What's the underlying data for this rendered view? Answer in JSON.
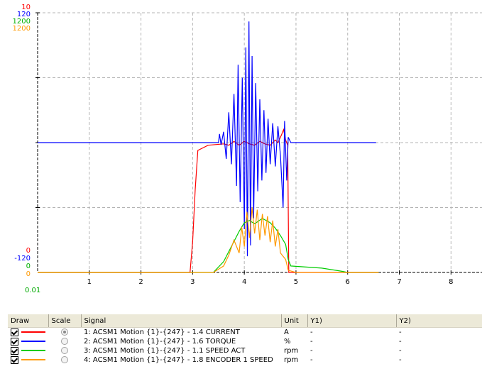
{
  "chart_data": {
    "type": "line",
    "title": "",
    "xlabel": "",
    "ylabel": "",
    "xlim": [
      0,
      8.6
    ],
    "x_tick_labels": [
      "1",
      "2",
      "3",
      "4",
      "5",
      "6",
      "7",
      "8"
    ],
    "x_origin_label": "0.01",
    "y_top_labels": [
      {
        "text": "10",
        "color": "#ff0000"
      },
      {
        "text": "120",
        "color": "#0000ff"
      },
      {
        "text": "1200",
        "color": "#00b000"
      },
      {
        "text": "1200",
        "color": "#ff9900"
      }
    ],
    "y_bottom_labels": [
      {
        "text": "0",
        "color": "#ff0000"
      },
      {
        "text": "-120",
        "color": "#0000ff"
      },
      {
        "text": "0",
        "color": "#00b000"
      },
      {
        "text": "0",
        "color": "#ff9900"
      }
    ],
    "grid": true,
    "series": [
      {
        "key": "current",
        "color": "#ff0000",
        "ylim": [
          0,
          10
        ],
        "points": [
          [
            0,
            0
          ],
          [
            2.95,
            0
          ],
          [
            3.0,
            1.2
          ],
          [
            3.05,
            3.2
          ],
          [
            3.1,
            4.7
          ],
          [
            3.3,
            4.9
          ],
          [
            3.6,
            4.95
          ],
          [
            3.7,
            4.9
          ],
          [
            3.8,
            5.05
          ],
          [
            3.9,
            4.9
          ],
          [
            4.0,
            5.05
          ],
          [
            4.1,
            4.95
          ],
          [
            4.2,
            4.9
          ],
          [
            4.3,
            5.05
          ],
          [
            4.4,
            4.95
          ],
          [
            4.5,
            4.9
          ],
          [
            4.6,
            5.1
          ],
          [
            4.65,
            5.0
          ],
          [
            4.72,
            5.3
          ],
          [
            4.76,
            5.5
          ],
          [
            4.8,
            5.1
          ],
          [
            4.84,
            4.9
          ],
          [
            4.86,
            0
          ],
          [
            6.6,
            0
          ]
        ]
      },
      {
        "key": "torque",
        "color": "#0000ff",
        "ylim": [
          -120,
          120
        ],
        "points": [
          [
            0,
            0
          ],
          [
            3.5,
            0
          ],
          [
            3.52,
            8
          ],
          [
            3.55,
            -2
          ],
          [
            3.6,
            10
          ],
          [
            3.65,
            -15
          ],
          [
            3.7,
            28
          ],
          [
            3.75,
            -20
          ],
          [
            3.8,
            45
          ],
          [
            3.85,
            -40
          ],
          [
            3.88,
            72
          ],
          [
            3.92,
            -55
          ],
          [
            3.96,
            60
          ],
          [
            4.0,
            -80
          ],
          [
            4.03,
            88
          ],
          [
            4.06,
            -105
          ],
          [
            4.09,
            112
          ],
          [
            4.12,
            -95
          ],
          [
            4.15,
            80
          ],
          [
            4.18,
            -70
          ],
          [
            4.22,
            55
          ],
          [
            4.26,
            -45
          ],
          [
            4.3,
            40
          ],
          [
            4.34,
            -35
          ],
          [
            4.38,
            30
          ],
          [
            4.42,
            -28
          ],
          [
            4.46,
            22
          ],
          [
            4.5,
            -20
          ],
          [
            4.55,
            18
          ],
          [
            4.6,
            -22
          ],
          [
            4.65,
            15
          ],
          [
            4.7,
            -12
          ],
          [
            4.75,
            -60
          ],
          [
            4.78,
            20
          ],
          [
            4.82,
            -35
          ],
          [
            4.85,
            5
          ],
          [
            4.9,
            0
          ],
          [
            6.55,
            0
          ]
        ]
      },
      {
        "key": "speed_act",
        "color": "#00cc00",
        "ylim": [
          0,
          1200
        ],
        "points": [
          [
            0,
            0
          ],
          [
            3.4,
            0
          ],
          [
            3.6,
            50
          ],
          [
            3.75,
            120
          ],
          [
            3.9,
            190
          ],
          [
            4.0,
            230
          ],
          [
            4.1,
            240
          ],
          [
            4.2,
            225
          ],
          [
            4.35,
            250
          ],
          [
            4.5,
            230
          ],
          [
            4.6,
            205
          ],
          [
            4.7,
            170
          ],
          [
            4.8,
            130
          ],
          [
            4.85,
            60
          ],
          [
            4.9,
            30
          ],
          [
            5.5,
            20
          ],
          [
            5.9,
            5
          ],
          [
            6.0,
            0
          ],
          [
            6.6,
            0
          ]
        ]
      },
      {
        "key": "encoder1_speed",
        "color": "#ff9900",
        "ylim": [
          0,
          1200
        ],
        "points": [
          [
            0,
            0
          ],
          [
            3.4,
            0
          ],
          [
            3.6,
            30
          ],
          [
            3.7,
            80
          ],
          [
            3.8,
            150
          ],
          [
            3.9,
            90
          ],
          [
            3.95,
            210
          ],
          [
            4.0,
            120
          ],
          [
            4.05,
            280
          ],
          [
            4.1,
            160
          ],
          [
            4.15,
            300
          ],
          [
            4.2,
            180
          ],
          [
            4.25,
            290
          ],
          [
            4.3,
            150
          ],
          [
            4.35,
            270
          ],
          [
            4.4,
            170
          ],
          [
            4.45,
            260
          ],
          [
            4.5,
            140
          ],
          [
            4.55,
            240
          ],
          [
            4.6,
            120
          ],
          [
            4.65,
            200
          ],
          [
            4.7,
            90
          ],
          [
            4.8,
            60
          ],
          [
            4.85,
            10
          ],
          [
            5.0,
            0
          ],
          [
            6.6,
            0
          ]
        ]
      }
    ]
  },
  "legend": {
    "headers": {
      "draw": "Draw",
      "scale": "Scale",
      "signal": "Signal",
      "unit": "Unit",
      "y1": "Y1)",
      "y2": "Y2)"
    },
    "rows": [
      {
        "color": "#ff0000",
        "signal": "1: ACSM1 Motion {1}-{247} - 1.4 CURRENT",
        "unit": "A",
        "y1": "-",
        "y2": "-",
        "scale_selected": true
      },
      {
        "color": "#0000ff",
        "signal": "2: ACSM1 Motion {1}-{247} - 1.6 TORQUE",
        "unit": "%",
        "y1": "-",
        "y2": "-",
        "scale_selected": false
      },
      {
        "color": "#00cc00",
        "signal": "3: ACSM1 Motion {1}-{247} - 1.1 SPEED ACT",
        "unit": "rpm",
        "y1": "-",
        "y2": "-",
        "scale_selected": false
      },
      {
        "color": "#ff9900",
        "signal": "4: ACSM1 Motion {1}-{247} - 1.8 ENCODER 1 SPEED",
        "unit": "rpm",
        "y1": "-",
        "y2": "-",
        "scale_selected": false
      }
    ]
  }
}
